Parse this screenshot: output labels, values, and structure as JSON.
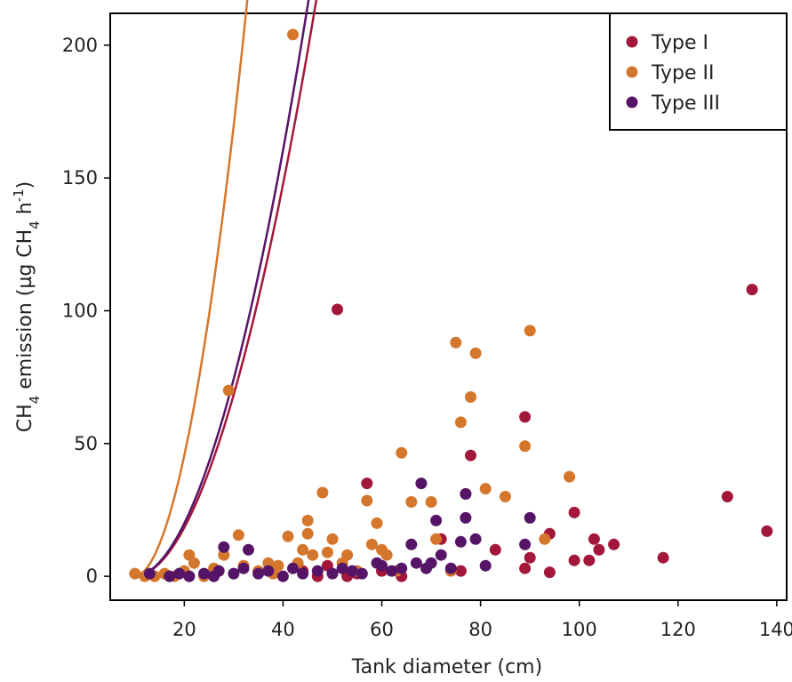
{
  "chart_data": {
    "type": "scatter",
    "xlabel": "Tank diameter (cm)",
    "ylabel": {
      "main": "CH",
      "sub1": "4",
      "mid": " emission (µg CH",
      "sub2": "4",
      "mid2": " h",
      "sup": "-1",
      "end": ")"
    },
    "xlim": [
      5,
      142
    ],
    "ylim": [
      -9,
      212
    ],
    "xticks": [
      20,
      40,
      60,
      80,
      100,
      120,
      140
    ],
    "xtick_labels": [
      "20",
      "40",
      "60",
      "80",
      "100",
      "120",
      "140"
    ],
    "yticks": [
      0,
      50,
      100,
      150,
      200
    ],
    "ytick_labels": [
      "0",
      "50",
      "100",
      "150",
      "200"
    ],
    "grid": false,
    "legend_position": "top-right",
    "series": [
      {
        "name": "Type I",
        "color": "#a3173a",
        "trend": {
          "a": 0.2305,
          "x0": 10,
          "p": 1.9,
          "xmin": 10,
          "xmax": 140
        },
        "points": [
          [
            44,
            2
          ],
          [
            47,
            0
          ],
          [
            49,
            4
          ],
          [
            51,
            100.5
          ],
          [
            53,
            0
          ],
          [
            55,
            1
          ],
          [
            57,
            35
          ],
          [
            60,
            2
          ],
          [
            64,
            0
          ],
          [
            72,
            14
          ],
          [
            76,
            2
          ],
          [
            78,
            45.5
          ],
          [
            83,
            10
          ],
          [
            89,
            3
          ],
          [
            89,
            60
          ],
          [
            90,
            7
          ],
          [
            94,
            1.5
          ],
          [
            94,
            16
          ],
          [
            99,
            24
          ],
          [
            99,
            6
          ],
          [
            102,
            6
          ],
          [
            103,
            14
          ],
          [
            104,
            10
          ],
          [
            107,
            12
          ],
          [
            117,
            7
          ],
          [
            130,
            30
          ],
          [
            135,
            108
          ],
          [
            138,
            17
          ]
        ]
      },
      {
        "name": "Type II",
        "color": "#d4772c",
        "trend": {
          "a": 0.572,
          "x0": 10,
          "p": 1.9,
          "xmin": 10,
          "xmax": 140
        },
        "points": [
          [
            10,
            1
          ],
          [
            12,
            0
          ],
          [
            14,
            0
          ],
          [
            16,
            1
          ],
          [
            18,
            0
          ],
          [
            20,
            2
          ],
          [
            21,
            8
          ],
          [
            22,
            5
          ],
          [
            24,
            0
          ],
          [
            26,
            3
          ],
          [
            28,
            8
          ],
          [
            29,
            70
          ],
          [
            31,
            15.5
          ],
          [
            32,
            4
          ],
          [
            35,
            2
          ],
          [
            37,
            5
          ],
          [
            38,
            1
          ],
          [
            39,
            4
          ],
          [
            41,
            15
          ],
          [
            42,
            204
          ],
          [
            43,
            5
          ],
          [
            44,
            10
          ],
          [
            45,
            16
          ],
          [
            45,
            21
          ],
          [
            46,
            8
          ],
          [
            48,
            31.5
          ],
          [
            49,
            9
          ],
          [
            50,
            14
          ],
          [
            52,
            5
          ],
          [
            53,
            8
          ],
          [
            55,
            2
          ],
          [
            57,
            28.5
          ],
          [
            58,
            12
          ],
          [
            59,
            20
          ],
          [
            60,
            10
          ],
          [
            61,
            8
          ],
          [
            63,
            2
          ],
          [
            64,
            46.5
          ],
          [
            66,
            28
          ],
          [
            70,
            28
          ],
          [
            71,
            14
          ],
          [
            74,
            2
          ],
          [
            75,
            88
          ],
          [
            76,
            58
          ],
          [
            77,
            31
          ],
          [
            78,
            67.5
          ],
          [
            79,
            84
          ],
          [
            81,
            33
          ],
          [
            85,
            30
          ],
          [
            89,
            49
          ],
          [
            90,
            92.5
          ],
          [
            93,
            14
          ],
          [
            98,
            37.5
          ]
        ]
      },
      {
        "name": "Type III",
        "color": "#561467",
        "trend": {
          "a": 0.2505,
          "x0": 10,
          "p": 1.9,
          "xmin": 10,
          "xmax": 140
        },
        "points": [
          [
            13,
            1
          ],
          [
            17,
            0
          ],
          [
            19,
            1
          ],
          [
            21,
            0
          ],
          [
            24,
            1
          ],
          [
            26,
            0
          ],
          [
            27,
            2
          ],
          [
            28,
            11
          ],
          [
            30,
            1
          ],
          [
            32,
            3
          ],
          [
            33,
            10
          ],
          [
            35,
            1
          ],
          [
            37,
            2
          ],
          [
            40,
            0
          ],
          [
            42,
            3
          ],
          [
            44,
            1
          ],
          [
            47,
            2
          ],
          [
            50,
            1
          ],
          [
            52,
            3
          ],
          [
            54,
            2
          ],
          [
            56,
            1
          ],
          [
            59,
            5
          ],
          [
            60,
            4
          ],
          [
            62,
            2
          ],
          [
            64,
            3
          ],
          [
            66,
            12
          ],
          [
            67,
            5
          ],
          [
            68,
            35
          ],
          [
            69,
            3
          ],
          [
            70,
            5
          ],
          [
            71,
            21
          ],
          [
            72,
            8
          ],
          [
            74,
            3
          ],
          [
            76,
            13
          ],
          [
            77,
            31
          ],
          [
            77,
            22
          ],
          [
            79,
            14
          ],
          [
            81,
            4
          ],
          [
            89,
            12
          ],
          [
            90,
            22
          ]
        ]
      }
    ]
  }
}
